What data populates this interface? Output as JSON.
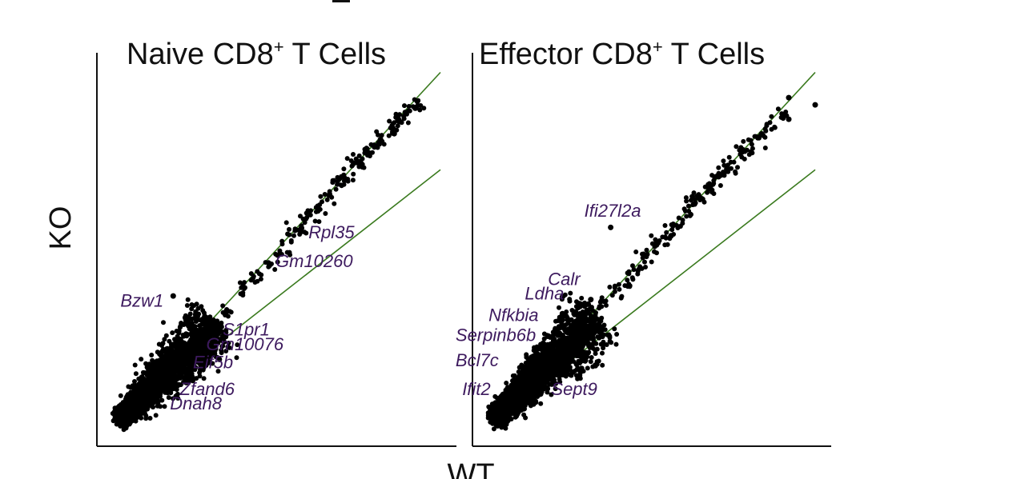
{
  "chart_data": [
    {
      "type": "scatter",
      "title": "Naive CD8",
      "title_sup": "+",
      "title_suffix": " T Cells",
      "xlabel": "WT",
      "ylabel": "KO",
      "xlim": [
        0,
        10
      ],
      "ylim": [
        0,
        10
      ],
      "grid": false,
      "point_color": "#000000",
      "line_color": "#3a7a1e",
      "label_color": "#3d1a5e",
      "boundary_lines": [
        {
          "points": [
            [
              0.2,
              0.2
            ],
            [
              10,
              9.9
            ]
          ]
        },
        {
          "points": [
            [
              0.2,
              0.2
            ],
            [
              10,
              7.2
            ]
          ]
        }
      ],
      "cloud": {
        "center_line": [
          [
            0.3,
            0.3
          ],
          [
            3.2,
            2.9
          ]
        ],
        "count": 2600,
        "spread": 0.34
      },
      "diag_points": [
        [
          3.5,
          3.3
        ],
        [
          4.0,
          3.9
        ],
        [
          4.4,
          4.2
        ],
        [
          4.8,
          4.6
        ],
        [
          5.2,
          5.0
        ],
        [
          5.5,
          5.4
        ],
        [
          5.8,
          5.6
        ],
        [
          6.0,
          5.9
        ],
        [
          6.3,
          6.2
        ],
        [
          6.6,
          6.5
        ],
        [
          6.9,
          6.8
        ],
        [
          7.1,
          7.0
        ],
        [
          7.4,
          7.3
        ],
        [
          7.6,
          7.4
        ],
        [
          7.8,
          7.7
        ],
        [
          8.0,
          7.9
        ],
        [
          8.2,
          8.0
        ],
        [
          8.5,
          8.3
        ],
        [
          8.7,
          8.6
        ],
        [
          9.0,
          8.8
        ],
        [
          9.3,
          9.0
        ]
      ],
      "outliers": [
        [
          9.3,
          9.1
        ],
        [
          8.6,
          8.2
        ],
        [
          1.9,
          3.7
        ],
        [
          2.7,
          2.6
        ],
        [
          2.3,
          1.3
        ],
        [
          1.4,
          0.9
        ]
      ],
      "labels": [
        {
          "text": "Rpl35",
          "x": 6.0,
          "y": 5.3
        },
        {
          "text": "Gm10260",
          "x": 5.0,
          "y": 4.5
        },
        {
          "text": "Bzw1",
          "x": 0.3,
          "y": 3.4
        },
        {
          "text": "S1pr1",
          "x": 3.4,
          "y": 2.6
        },
        {
          "text": "Gm10076",
          "x": 2.9,
          "y": 2.2
        },
        {
          "text": "Eif5b",
          "x": 2.5,
          "y": 1.7
        },
        {
          "text": "Zfand6",
          "x": 2.1,
          "y": 0.95
        },
        {
          "text": "Dnah8",
          "x": 1.8,
          "y": 0.55
        }
      ]
    },
    {
      "type": "scatter",
      "title": "Effector CD8",
      "title_sup": "+",
      "title_suffix": " T Cells",
      "xlim": [
        0,
        10
      ],
      "ylim": [
        0,
        10
      ],
      "grid": false,
      "point_color": "#000000",
      "line_color": "#3a7a1e",
      "label_color": "#3d1a5e",
      "boundary_lines": [
        {
          "points": [
            [
              0.2,
              0.2
            ],
            [
              10,
              9.9
            ]
          ]
        },
        {
          "points": [
            [
              0.2,
              0.2
            ],
            [
              10,
              7.2
            ]
          ]
        }
      ],
      "cloud": {
        "center_line": [
          [
            0.3,
            0.3
          ],
          [
            3.4,
            3.1
          ]
        ],
        "count": 2600,
        "spread": 0.36
      },
      "diag_points": [
        [
          3.6,
          3.5
        ],
        [
          4.0,
          3.9
        ],
        [
          4.3,
          4.2
        ],
        [
          4.6,
          4.5
        ],
        [
          4.9,
          4.9
        ],
        [
          5.2,
          5.1
        ],
        [
          5.5,
          5.4
        ],
        [
          5.8,
          5.6
        ],
        [
          6.1,
          6.0
        ],
        [
          6.3,
          6.3
        ],
        [
          6.5,
          6.4
        ],
        [
          6.8,
          6.7
        ],
        [
          7.0,
          6.9
        ],
        [
          7.2,
          7.1
        ],
        [
          7.5,
          7.3
        ],
        [
          7.7,
          7.6
        ],
        [
          8.0,
          7.8
        ],
        [
          8.3,
          8.1
        ],
        [
          8.6,
          8.3
        ],
        [
          9.0,
          8.7
        ]
      ],
      "outliers": [
        [
          9.2,
          9.2
        ],
        [
          9.2,
          8.6
        ],
        [
          10,
          9.0
        ],
        [
          3.8,
          5.6
        ],
        [
          3.2,
          3.6
        ],
        [
          1.4,
          2.0
        ],
        [
          1.5,
          1.1
        ]
      ],
      "labels": [
        {
          "text": "Ifi27l2a",
          "x": 3.0,
          "y": 5.9
        },
        {
          "text": "Calr",
          "x": 1.9,
          "y": 4.0
        },
        {
          "text": "Ldha",
          "x": 1.2,
          "y": 3.6
        },
        {
          "text": "Nfkbia",
          "x": 0.1,
          "y": 3.0
        },
        {
          "text": "Serpinb6b",
          "x": -0.9,
          "y": 2.45
        },
        {
          "text": "Bcl7c",
          "x": -0.9,
          "y": 1.75
        },
        {
          "text": "Ifit2",
          "x": -0.7,
          "y": 0.95
        },
        {
          "text": "Sept9",
          "x": 2.0,
          "y": 0.95
        }
      ]
    }
  ]
}
